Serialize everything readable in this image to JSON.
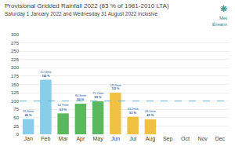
{
  "chart_data": {
    "type": "bar",
    "title": "Provisional Gridded Rainfall 2022 (83 % of 1981-2010 LTA)",
    "subtitle": "Saturday 1 January 2022 and Wednesday 31 August 2022 inclusive",
    "categories": [
      "Jan",
      "Feb",
      "Mar",
      "Apr",
      "May",
      "Jun",
      "Jul",
      "Aug",
      "Sep",
      "Oct",
      "Nov",
      "Dec"
    ],
    "values": [
      46,
      164,
      63,
      92,
      99,
      125,
      53,
      45,
      0,
      0,
      0,
      0
    ],
    "value_labels": [
      "46 %",
      "164 %",
      "63 %",
      "92 %",
      "99 %",
      "125 %",
      "53 %",
      "45 %",
      null,
      null,
      null,
      null
    ],
    "mm_values": [
      39.8,
      157.8,
      64.9,
      84.8,
      71.7,
      133.8,
      44.2,
      46.0,
      0,
      0,
      0,
      0
    ],
    "mm_labels": [
      "39.8mm",
      "157.8mm",
      "64.9mm",
      "84.8mm",
      "71.7mm",
      "133.8mm",
      "44.2mm",
      "46.0mm",
      null,
      null,
      null,
      null
    ],
    "colors": [
      "#87ceeb",
      "#87ceeb",
      "#5cb85c",
      "#5cb85c",
      "#5cb85c",
      "#f0c040",
      "#f0c040",
      "#f0c040",
      null,
      null,
      null,
      null
    ],
    "ylim": [
      0,
      300
    ],
    "yticks": [
      0,
      25,
      50,
      75,
      100,
      125,
      150,
      175,
      200,
      225,
      250,
      275,
      300
    ],
    "reference_line": 100,
    "grid": true,
    "data_labels": true,
    "annotations": [
      "❋",
      "Met",
      "Éireann"
    ]
  }
}
